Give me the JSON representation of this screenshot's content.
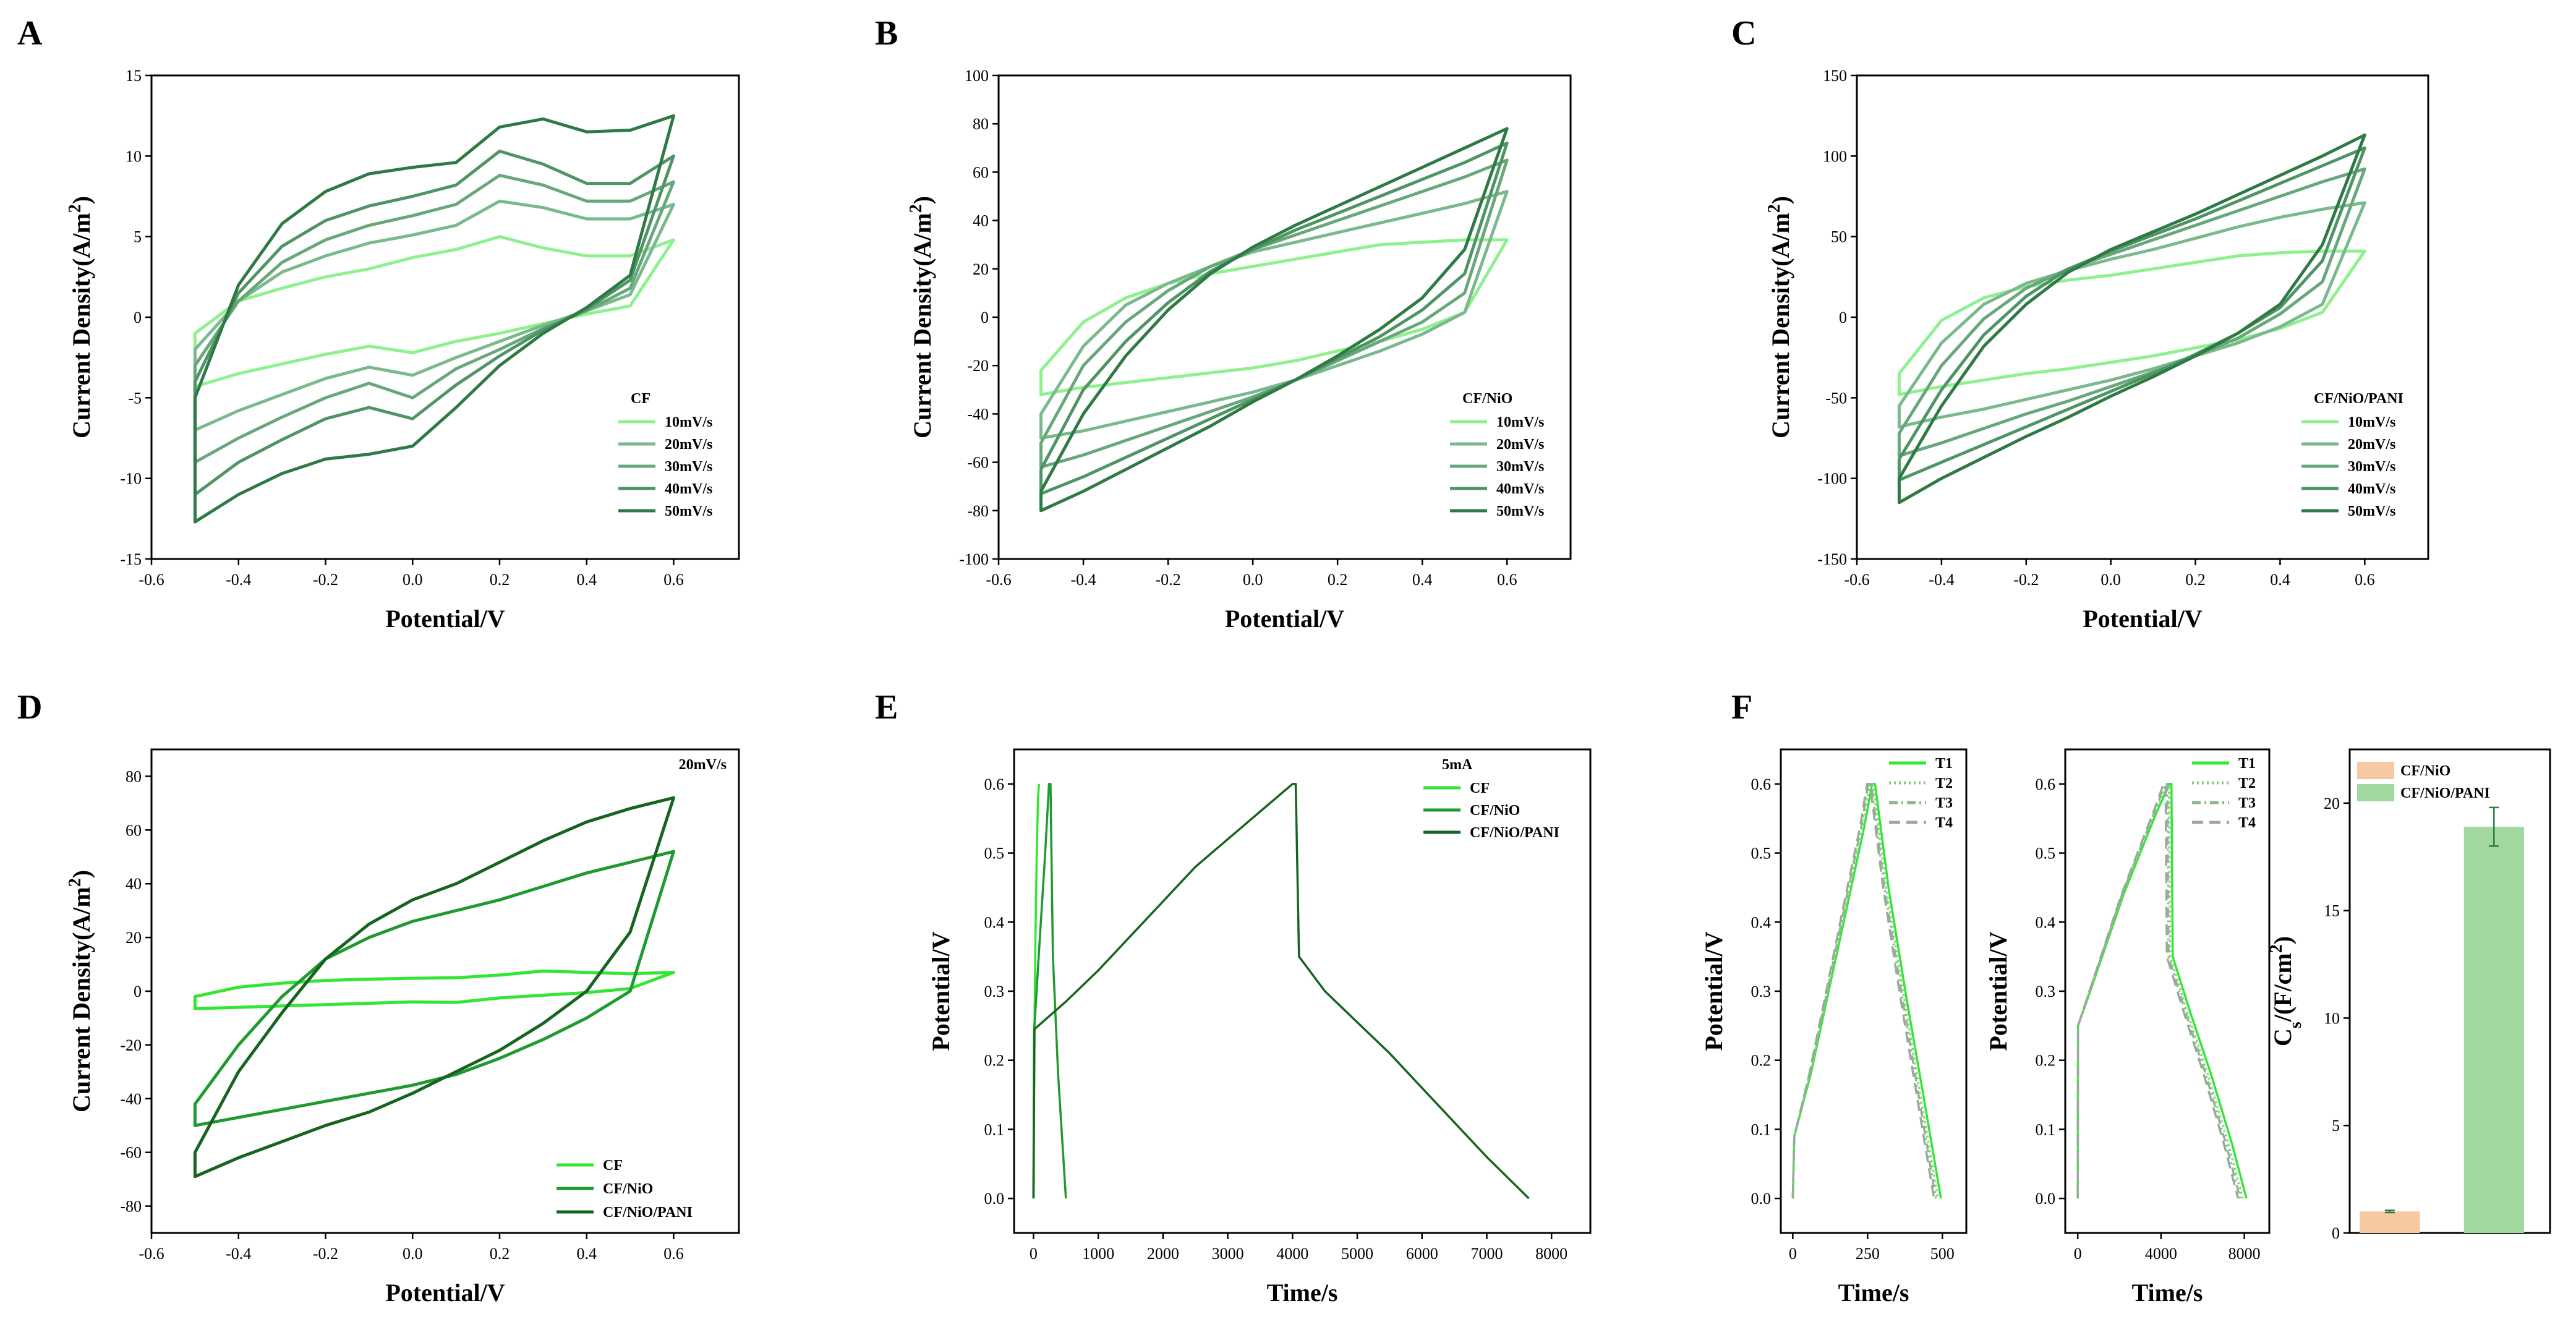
{
  "panel_labels": [
    "A",
    "B",
    "C",
    "D",
    "E",
    "F"
  ],
  "colors": {
    "s10": "#8ef08e",
    "s20": "#79b98c",
    "s30": "#67a77a",
    "s40": "#4e9464",
    "s50": "#2e7a44",
    "cf": "#33e633",
    "cfnio": "#1f9a2f",
    "cfnio_pani": "#15641f",
    "bar_nio": "#f7c9a2",
    "bar_pani": "#a0d8a0"
  },
  "chart_data": [
    {
      "id": "A",
      "type": "line",
      "title": "",
      "xlabel": "Potential/V",
      "ylabel": "Current Density(A/m²)",
      "xlim": [
        -0.6,
        0.75
      ],
      "ylim": [
        -15,
        15
      ],
      "xticks": [
        "-0.6",
        "-0.4",
        "-0.2",
        "0.0",
        "0.2",
        "0.4",
        "0.6"
      ],
      "yticks": [
        "-15",
        "-10",
        "-5",
        "0",
        "5",
        "10",
        "15"
      ],
      "legend_title": "CF",
      "series": [
        {
          "name": "10mV/s",
          "ytop": [
            -1.0,
            1.0,
            1.8,
            2.5,
            3.0,
            3.7,
            4.2,
            5.0,
            4.3,
            3.8,
            3.8,
            4.8
          ],
          "ybot": [
            -4.3,
            -3.5,
            -2.9,
            -2.3,
            -1.8,
            -2.2,
            -1.5,
            -1.0,
            -0.4,
            0.2,
            0.7,
            4.8
          ]
        },
        {
          "name": "20mV/s",
          "ytop": [
            -2.0,
            1.0,
            2.8,
            3.8,
            4.6,
            5.1,
            5.7,
            7.2,
            6.8,
            6.1,
            6.1,
            7.0
          ],
          "ybot": [
            -7.0,
            -5.8,
            -4.8,
            -3.8,
            -3.1,
            -3.6,
            -2.5,
            -1.5,
            -0.5,
            0.4,
            1.4,
            7.0
          ]
        },
        {
          "name": "30mV/s",
          "ytop": [
            -3.0,
            1.0,
            3.4,
            4.8,
            5.7,
            6.3,
            7.0,
            8.8,
            8.2,
            7.2,
            7.2,
            8.4
          ],
          "ybot": [
            -9.0,
            -7.5,
            -6.2,
            -5.0,
            -4.1,
            -5.0,
            -3.2,
            -2.0,
            -0.7,
            0.4,
            1.8,
            8.4
          ]
        },
        {
          "name": "40mV/s",
          "ytop": [
            -4.0,
            1.5,
            4.4,
            6.0,
            6.9,
            7.5,
            8.2,
            10.3,
            9.5,
            8.3,
            8.3,
            10.0
          ],
          "ybot": [
            -11.0,
            -9.0,
            -7.6,
            -6.3,
            -5.6,
            -6.3,
            -4.2,
            -2.4,
            -0.8,
            0.5,
            2.3,
            10.0
          ]
        },
        {
          "name": "50mV/s",
          "ytop": [
            -5.0,
            2.0,
            5.8,
            7.8,
            8.9,
            9.3,
            9.6,
            11.8,
            12.3,
            11.5,
            11.6,
            12.5
          ],
          "ybot": [
            -12.7,
            -11.0,
            -9.7,
            -8.8,
            -8.5,
            -8.0,
            -5.6,
            -3.0,
            -1.0,
            0.6,
            2.6,
            12.5
          ]
        }
      ]
    },
    {
      "id": "B",
      "type": "line",
      "xlabel": "Potential/V",
      "ylabel": "Current Density(A/m²)",
      "xlim": [
        -0.6,
        0.75
      ],
      "ylim": [
        -100,
        100
      ],
      "xticks": [
        "-0.6",
        "-0.4",
        "-0.2",
        "0.0",
        "0.2",
        "0.4",
        "0.6"
      ],
      "yticks": [
        "-100",
        "-80",
        "-60",
        "-40",
        "-20",
        "0",
        "20",
        "40",
        "60",
        "80",
        "100"
      ],
      "legend_title": "CF/NiO",
      "series": [
        {
          "name": "10mV/s",
          "ytop": [
            -22,
            -2,
            8,
            14,
            18,
            21,
            24,
            27,
            30,
            31,
            32,
            32
          ],
          "ybot": [
            -32,
            -29,
            -27,
            -25,
            -23,
            -21,
            -18,
            -14,
            -10,
            -5,
            2,
            32
          ]
        },
        {
          "name": "20mV/s",
          "ytop": [
            -40,
            -12,
            5,
            14,
            21,
            27,
            31,
            35,
            39,
            43,
            47,
            52
          ],
          "ybot": [
            -50,
            -47,
            -43,
            -39,
            -35,
            -31,
            -26,
            -20,
            -14,
            -7,
            2,
            52
          ]
        },
        {
          "name": "30mV/s",
          "ytop": [
            -52,
            -20,
            -2,
            11,
            21,
            28,
            34,
            40,
            46,
            52,
            58,
            65
          ],
          "ybot": [
            -62,
            -57,
            -51,
            -45,
            -39,
            -33,
            -26,
            -18,
            -10,
            -2,
            10,
            65
          ]
        },
        {
          "name": "40mV/s",
          "ytop": [
            -63,
            -30,
            -10,
            6,
            19,
            28,
            36,
            43,
            50,
            57,
            64,
            72
          ],
          "ybot": [
            -73,
            -66,
            -58,
            -50,
            -42,
            -34,
            -26,
            -17,
            -8,
            3,
            18,
            72
          ]
        },
        {
          "name": "50mV/s",
          "ytop": [
            -72,
            -40,
            -16,
            3,
            18,
            29,
            38,
            46,
            54,
            62,
            70,
            78
          ],
          "ybot": [
            -80,
            -72,
            -63,
            -54,
            -45,
            -35,
            -26,
            -16,
            -5,
            8,
            28,
            78
          ]
        }
      ]
    },
    {
      "id": "C",
      "type": "line",
      "xlabel": "Potential/V",
      "ylabel": "Current Density(A/m²)",
      "xlim": [
        -0.6,
        0.75
      ],
      "ylim": [
        -150,
        150
      ],
      "xticks": [
        "-0.6",
        "-0.4",
        "-0.2",
        "0.0",
        "0.2",
        "0.4",
        "0.6"
      ],
      "yticks": [
        "-150",
        "-100",
        "-50",
        "0",
        "50",
        "100",
        "150"
      ],
      "legend_title": "CF/NiO/PANI",
      "series": [
        {
          "name": "10mV/s",
          "ytop": [
            -35,
            -2,
            12,
            19,
            23,
            26,
            30,
            34,
            38,
            40,
            41,
            41
          ],
          "ybot": [
            -48,
            -43,
            -39,
            -35,
            -32,
            -28,
            -24,
            -19,
            -14,
            -7,
            3,
            41
          ]
        },
        {
          "name": "20mV/s",
          "ytop": [
            -55,
            -16,
            8,
            21,
            29,
            36,
            42,
            49,
            56,
            62,
            67,
            71
          ],
          "ybot": [
            -68,
            -62,
            -57,
            -51,
            -45,
            -39,
            -32,
            -24,
            -16,
            -6,
            8,
            71
          ]
        },
        {
          "name": "30mV/s",
          "ytop": [
            -72,
            -30,
            -1,
            18,
            30,
            39,
            48,
            57,
            66,
            75,
            84,
            92
          ],
          "ybot": [
            -86,
            -78,
            -69,
            -60,
            -52,
            -43,
            -34,
            -24,
            -13,
            2,
            22,
            92
          ]
        },
        {
          "name": "40mV/s",
          "ytop": [
            -88,
            -45,
            -11,
            13,
            30,
            41,
            51,
            61,
            72,
            83,
            94,
            105
          ],
          "ybot": [
            -101,
            -90,
            -79,
            -68,
            -57,
            -46,
            -35,
            -23,
            -10,
            6,
            35,
            105
          ]
        },
        {
          "name": "50mV/s",
          "ytop": [
            -100,
            -55,
            -18,
            8,
            28,
            42,
            53,
            64,
            76,
            88,
            100,
            113
          ],
          "ybot": [
            -115,
            -100,
            -87,
            -74,
            -62,
            -49,
            -37,
            -24,
            -10,
            8,
            45,
            113
          ]
        }
      ]
    },
    {
      "id": "D",
      "type": "line",
      "xlabel": "Potential/V",
      "ylabel": "Current Density(A/m²)",
      "xlim": [
        -0.6,
        0.75
      ],
      "ylim": [
        -90,
        90
      ],
      "xticks": [
        "-0.6",
        "-0.4",
        "-0.2",
        "0.0",
        "0.2",
        "0.4",
        "0.6"
      ],
      "yticks": [
        "-80",
        "-60",
        "-40",
        "-20",
        "0",
        "20",
        "40",
        "60",
        "80"
      ],
      "annotation": "20mV/s",
      "series": [
        {
          "name": "CF",
          "ytop": [
            -2,
            1.5,
            3.0,
            4.0,
            4.5,
            4.8,
            5.0,
            6.0,
            7.5,
            7.0,
            6.5,
            7.0
          ],
          "ybot": [
            -6.5,
            -6.0,
            -5.5,
            -5.0,
            -4.5,
            -4.0,
            -4.2,
            -2.5,
            -1.5,
            -0.5,
            1.0,
            7.0
          ]
        },
        {
          "name": "CF/NiO",
          "ytop": [
            -42,
            -20,
            -2,
            12,
            20,
            26,
            30,
            34,
            39,
            44,
            48,
            52
          ],
          "ybot": [
            -50,
            -47,
            -44,
            -41,
            -38,
            -35,
            -31,
            -25,
            -18,
            -10,
            0,
            52
          ]
        },
        {
          "name": "CF/NiO/PANI",
          "ytop": [
            -60,
            -30,
            -8,
            12,
            25,
            34,
            40,
            48,
            56,
            63,
            68,
            72
          ],
          "ybot": [
            -69,
            -62,
            -56,
            -50,
            -45,
            -38,
            -30,
            -22,
            -12,
            0,
            22,
            72
          ]
        }
      ]
    },
    {
      "id": "E",
      "type": "line",
      "xlabel": "Time/s",
      "ylabel": "Potential/V",
      "xlim": [
        -300,
        8600
      ],
      "ylim": [
        -0.05,
        0.65
      ],
      "xticks": [
        "0",
        "1000",
        "2000",
        "3000",
        "4000",
        "5000",
        "6000",
        "7000",
        "8000"
      ],
      "yticks": [
        "0.0",
        "0.1",
        "0.2",
        "0.3",
        "0.4",
        "0.5",
        "0.6"
      ],
      "legend_title": "5mA",
      "series": [
        {
          "name": "CF",
          "x": [
            0,
            5,
            15,
            30,
            50,
            70,
            85
          ],
          "y": [
            0,
            0.12,
            0.25,
            0.38,
            0.5,
            0.58,
            0.6
          ]
        },
        {
          "name": "CF/NiO",
          "x": [
            0,
            8,
            80,
            180,
            240,
            262,
            300,
            380,
            500
          ],
          "y": [
            0,
            0.24,
            0.35,
            0.5,
            0.6,
            0.6,
            0.35,
            0.18,
            0
          ]
        },
        {
          "name": "CF/NiO/PANI",
          "x": [
            0,
            15,
            500,
            1000,
            1500,
            2000,
            2500,
            3000,
            3500,
            4000,
            4050,
            4100,
            4500,
            5000,
            5500,
            6000,
            6500,
            7000,
            7650
          ],
          "y": [
            0,
            0.245,
            0.285,
            0.33,
            0.38,
            0.43,
            0.48,
            0.52,
            0.56,
            0.6,
            0.6,
            0.35,
            0.3,
            0.255,
            0.21,
            0.16,
            0.11,
            0.06,
            0.0
          ]
        }
      ]
    },
    {
      "id": "F1",
      "type": "line",
      "xlabel": "Time/s",
      "ylabel": "Potential/V",
      "xlim": [
        -40,
        580
      ],
      "ylim": [
        -0.05,
        0.65
      ],
      "xticks": [
        "0",
        "250",
        "500"
      ],
      "yticks": [
        "0.0",
        "0.1",
        "0.2",
        "0.3",
        "0.4",
        "0.5",
        "0.6"
      ],
      "series": [
        {
          "name": "T1",
          "x": [
            0,
            5,
            60,
            120,
            180,
            240,
            265,
            275,
            320,
            380,
            440,
            495
          ],
          "y": [
            0,
            0.09,
            0.18,
            0.3,
            0.42,
            0.54,
            0.6,
            0.6,
            0.45,
            0.29,
            0.14,
            0
          ]
        },
        {
          "name": "T2",
          "x": [
            0,
            5,
            58,
            118,
            176,
            236,
            258,
            268,
            312,
            372,
            430,
            485
          ],
          "y": [
            0,
            0.09,
            0.18,
            0.3,
            0.42,
            0.54,
            0.6,
            0.6,
            0.45,
            0.29,
            0.14,
            0
          ]
        },
        {
          "name": "T3",
          "x": [
            0,
            5,
            56,
            115,
            172,
            230,
            252,
            262,
            306,
            366,
            424,
            478
          ],
          "y": [
            0,
            0.09,
            0.18,
            0.3,
            0.42,
            0.54,
            0.6,
            0.6,
            0.45,
            0.29,
            0.14,
            0
          ]
        },
        {
          "name": "T4",
          "x": [
            0,
            5,
            55,
            112,
            168,
            226,
            248,
            258,
            302,
            360,
            418,
            472
          ],
          "y": [
            0,
            0.09,
            0.18,
            0.3,
            0.42,
            0.54,
            0.6,
            0.6,
            0.45,
            0.29,
            0.14,
            0
          ]
        }
      ]
    },
    {
      "id": "F2",
      "type": "line",
      "xlabel": "Time/s",
      "ylabel": "Potential/V",
      "xlim": [
        -600,
        9200
      ],
      "ylim": [
        -0.05,
        0.65
      ],
      "xticks": [
        "0",
        "4000",
        "8000"
      ],
      "yticks": [
        "0.0",
        "0.1",
        "0.2",
        "0.3",
        "0.4",
        "0.5",
        "0.6"
      ],
      "series": [
        {
          "name": "T1",
          "x": [
            0,
            15,
            600,
            1400,
            2200,
            3000,
            3800,
            4400,
            4500,
            4560,
            5400,
            6400,
            7400,
            8100
          ],
          "y": [
            0,
            0.25,
            0.3,
            0.37,
            0.44,
            0.5,
            0.56,
            0.6,
            0.6,
            0.35,
            0.27,
            0.18,
            0.08,
            0
          ]
        },
        {
          "name": "T2",
          "x": [
            0,
            15,
            580,
            1370,
            2160,
            2950,
            3740,
            4280,
            4380,
            4440,
            5260,
            6240,
            7220,
            7920
          ],
          "y": [
            0,
            0.25,
            0.3,
            0.37,
            0.44,
            0.5,
            0.56,
            0.6,
            0.6,
            0.35,
            0.27,
            0.18,
            0.08,
            0
          ]
        },
        {
          "name": "T3",
          "x": [
            0,
            15,
            570,
            1350,
            2130,
            2910,
            3690,
            4200,
            4300,
            4360,
            5170,
            6140,
            7110,
            7800
          ],
          "y": [
            0,
            0.25,
            0.3,
            0.37,
            0.44,
            0.5,
            0.56,
            0.6,
            0.6,
            0.35,
            0.27,
            0.18,
            0.08,
            0
          ]
        },
        {
          "name": "T4",
          "x": [
            0,
            15,
            560,
            1330,
            2100,
            2870,
            3640,
            4120,
            4220,
            4280,
            5090,
            6050,
            7010,
            7700
          ],
          "y": [
            0,
            0.25,
            0.3,
            0.37,
            0.44,
            0.5,
            0.56,
            0.6,
            0.6,
            0.35,
            0.27,
            0.18,
            0.08,
            0
          ]
        }
      ]
    },
    {
      "id": "F3",
      "type": "bar",
      "ylabel": "Cs/(F/cm²)",
      "ylim": [
        0,
        22.5
      ],
      "yticks": [
        "0",
        "5",
        "10",
        "15",
        "20"
      ],
      "categories": [
        "CF/NiO",
        "CF/NiO/PANI"
      ],
      "values": [
        1.0,
        18.9
      ],
      "errors": [
        0.05,
        0.9
      ]
    }
  ]
}
